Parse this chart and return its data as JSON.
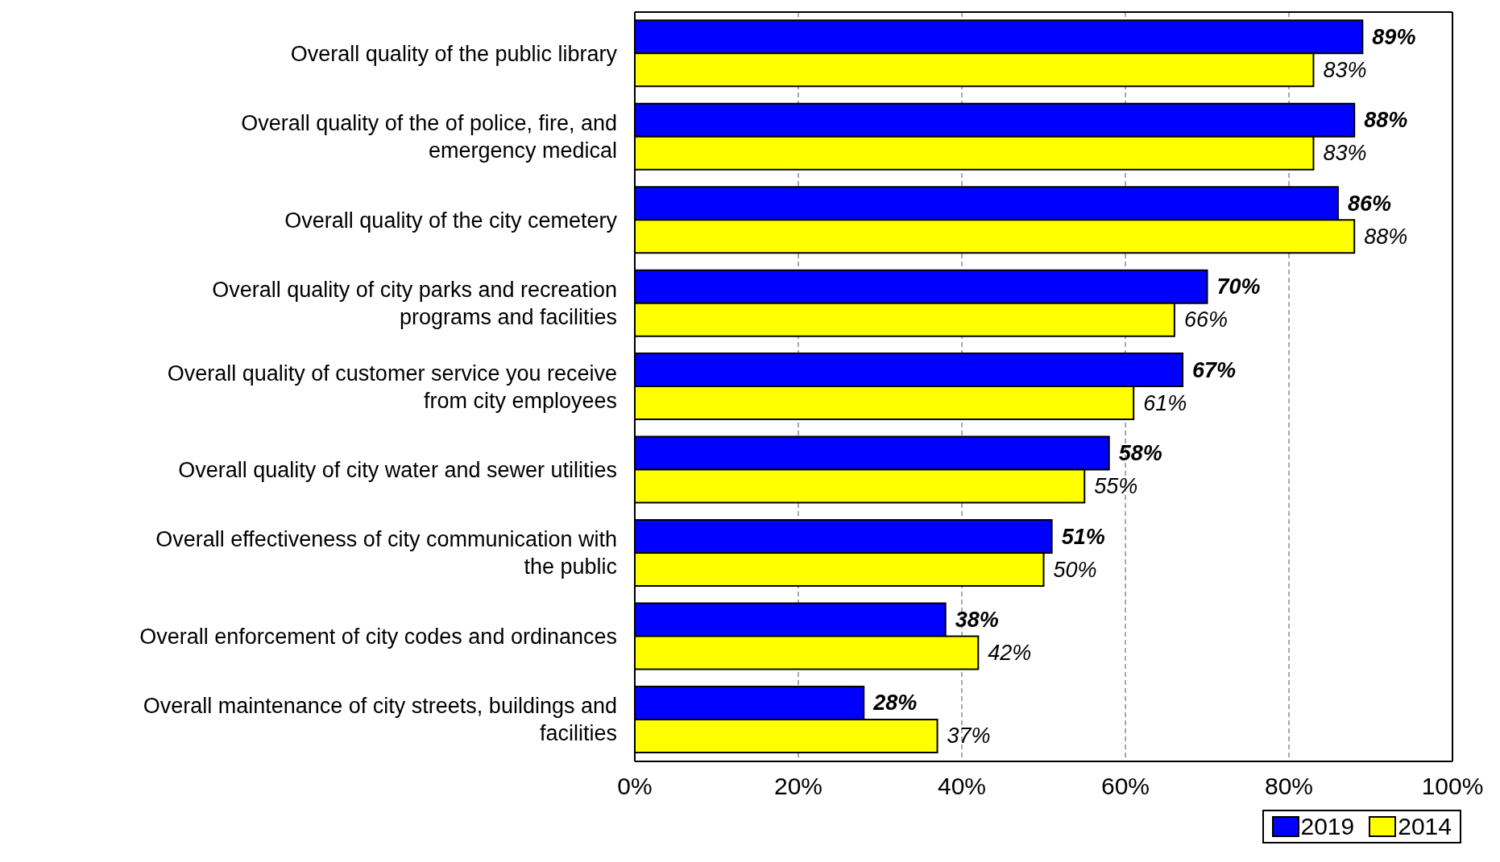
{
  "chart_data": {
    "type": "bar",
    "orientation": "horizontal",
    "categories": [
      "Overall quality of the public library",
      "Overall quality of the of police, fire, and emergency medical",
      "Overall quality of the city cemetery",
      "Overall quality of city parks and recreation programs and facilities",
      "Overall quality of customer service you receive from city employees",
      "Overall quality of city water and sewer utilities",
      "Overall effectiveness of city communication with the public",
      "Overall enforcement of city codes and ordinances",
      "Overall maintenance of city streets, buildings and facilities"
    ],
    "series": [
      {
        "name": "2019",
        "color": "#0000ff",
        "values": [
          89,
          88,
          86,
          70,
          67,
          58,
          51,
          38,
          28
        ],
        "value_labels": [
          "89%",
          "88%",
          "86%",
          "70%",
          "67%",
          "58%",
          "51%",
          "38%",
          "28%"
        ]
      },
      {
        "name": "2014",
        "color": "#ffff00",
        "values": [
          83,
          83,
          88,
          66,
          61,
          55,
          50,
          42,
          37
        ],
        "value_labels": [
          "83%",
          "83%",
          "88%",
          "66%",
          "61%",
          "55%",
          "50%",
          "42%",
          "37%"
        ]
      }
    ],
    "xlim": [
      0,
      100
    ],
    "xticks": [
      {
        "value": 0,
        "label": "0%"
      },
      {
        "value": 20,
        "label": "20%"
      },
      {
        "value": 40,
        "label": "40%"
      },
      {
        "value": 60,
        "label": "60%"
      },
      {
        "value": 80,
        "label": "80%"
      },
      {
        "value": 100,
        "label": "100%"
      }
    ],
    "grid": "x",
    "legend": "bottom right"
  }
}
